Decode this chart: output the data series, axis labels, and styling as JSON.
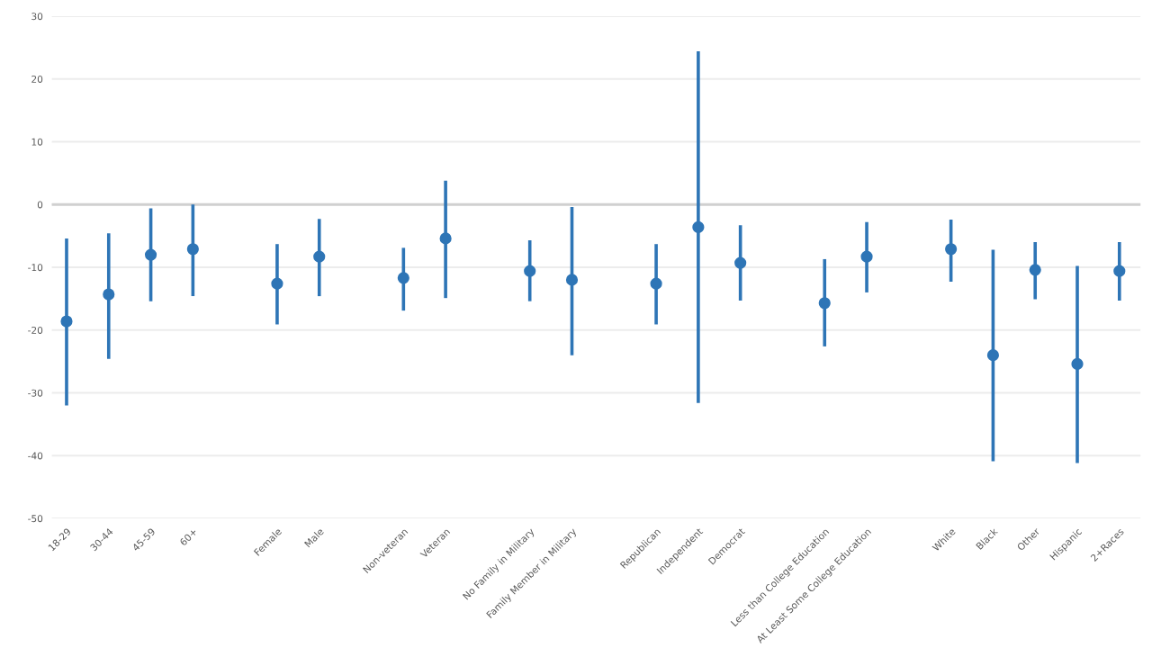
{
  "chart_data": {
    "type": "scatter",
    "categories": [
      "18-29",
      "30-44",
      "45-59",
      "60+",
      null,
      "Female",
      "Male",
      null,
      "Non-veteran",
      "Veteran",
      null,
      "No Family in Military",
      "Family Member in Military",
      null,
      "Republican",
      "Independent",
      "Democrat",
      null,
      "Less than College Education",
      "At Least Some College Education",
      null,
      "White",
      "Black",
      "Other",
      "Hispanic",
      "2+Races"
    ],
    "series": [
      {
        "color": "#2e75b6",
        "values": [
          -18.6,
          -14.3,
          -8,
          -7.1,
          null,
          -12.6,
          -8.3,
          null,
          -11.7,
          -5.4,
          null,
          -10.6,
          -12,
          null,
          -12.6,
          -3.6,
          -9.3,
          null,
          -15.7,
          -8.3,
          null,
          -7.1,
          -24,
          -10.4,
          -25.4,
          -10.6
        ],
        "errors": [
          [
            -32,
            -5.4
          ],
          [
            -24.6,
            -4.6
          ],
          [
            -15.4,
            -0.6
          ],
          [
            -14.6,
            0
          ],
          null,
          [
            -19.1,
            -6.3
          ],
          [
            -14.6,
            -2.3
          ],
          null,
          [
            -16.9,
            -6.9
          ],
          [
            -14.9,
            3.8
          ],
          null,
          [
            -15.4,
            -5.7
          ],
          [
            -24,
            -0.4
          ],
          null,
          [
            -19.1,
            -6.3
          ],
          [
            -31.6,
            24.4
          ],
          [
            -15.3,
            -3.3
          ],
          null,
          [
            -22.6,
            -8.7
          ],
          [
            -14,
            -2.8
          ],
          null,
          [
            -12.3,
            -2.4
          ],
          [
            -40.9,
            -7.2
          ],
          [
            -15.1,
            -6
          ],
          [
            -41.2,
            -9.8
          ],
          [
            -15.3,
            -6
          ]
        ]
      }
    ],
    "ylim": [
      -50,
      30
    ],
    "yticks": [
      -50,
      -40,
      -30,
      -20,
      -10,
      0,
      10,
      20,
      30
    ],
    "grid": "y",
    "marker": "circle",
    "legend": false
  }
}
